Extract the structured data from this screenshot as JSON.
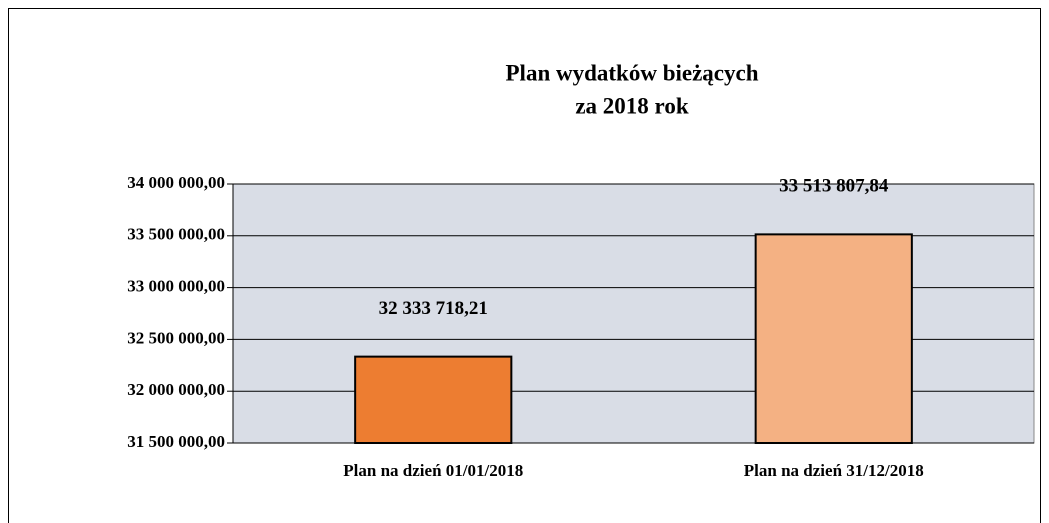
{
  "chart_data": {
    "type": "bar",
    "title": [
      "Plan wydatków bieżących",
      "za 2018 rok"
    ],
    "categories": [
      "Plan na dzień 01/01/2018",
      "Plan na dzień 31/12/2018"
    ],
    "values": [
      32333718.21,
      33513807.84
    ],
    "value_labels": [
      "32 333 718,21",
      "33 513 807,84"
    ],
    "colors": [
      "#ed7d31",
      "#f4b183"
    ],
    "ylim": [
      31500000,
      34000000
    ],
    "yticks": [
      {
        "value": 31500000,
        "label": "31 500 000,00"
      },
      {
        "value": 32000000,
        "label": "32 000 000,00"
      },
      {
        "value": 32500000,
        "label": "32 500 000,00"
      },
      {
        "value": 33000000,
        "label": "33 000 000,00"
      },
      {
        "value": 33500000,
        "label": "33 500 000,00"
      },
      {
        "value": 34000000,
        "label": "34 000 000,00"
      }
    ],
    "grid": true
  }
}
